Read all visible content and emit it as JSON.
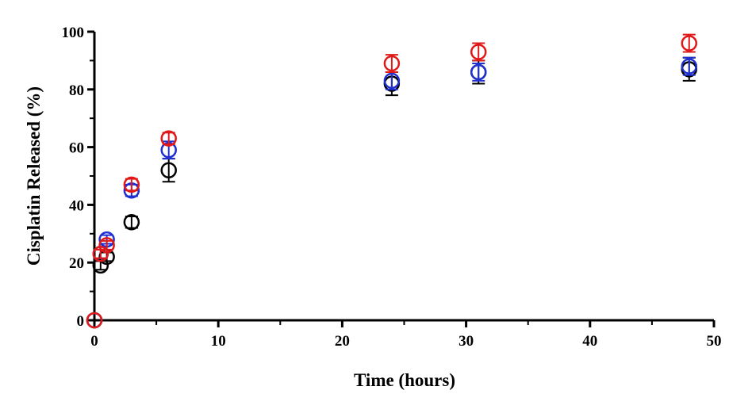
{
  "chart_data": {
    "type": "scatter",
    "xlabel": "Time (hours)",
    "ylabel": "Cisplatin Released (%)",
    "xlim": [
      0,
      50
    ],
    "ylim": [
      0,
      100
    ],
    "xticks": [
      "0",
      "10",
      "20",
      "30",
      "40",
      "50"
    ],
    "yticks": [
      "0",
      "20",
      "40",
      "60",
      "80",
      "100"
    ],
    "grid": false,
    "legend": "none",
    "series": [
      {
        "color": "#000000",
        "x": [
          0,
          0.5,
          1,
          3,
          6,
          24,
          31,
          48
        ],
        "y": [
          0,
          19,
          22,
          34,
          52,
          82,
          86,
          87
        ],
        "err": [
          0,
          1.5,
          1.5,
          2,
          4,
          4,
          4,
          4
        ]
      },
      {
        "color": "#1f2fd0",
        "x": [
          0,
          0.5,
          1,
          3,
          6,
          24,
          31,
          48
        ],
        "y": [
          0,
          23,
          28,
          45,
          59,
          83,
          86,
          88
        ],
        "err": [
          0,
          1.5,
          1.5,
          2,
          3,
          3,
          3,
          3
        ]
      },
      {
        "color": "#e01818",
        "x": [
          0,
          0.5,
          1,
          3,
          6,
          24,
          31,
          48
        ],
        "y": [
          0,
          23,
          26,
          47,
          63,
          89,
          93,
          96
        ],
        "err": [
          0,
          1.5,
          1.5,
          2,
          2,
          3,
          3,
          3
        ]
      }
    ]
  }
}
